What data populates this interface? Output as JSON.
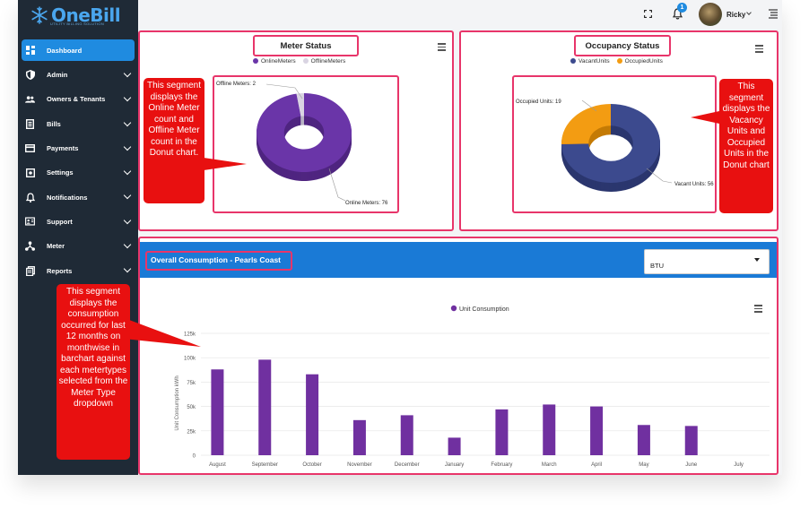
{
  "app": {
    "logo_text": "OneBill",
    "logo_tagline": "UTILITY BILLING SOLUTION"
  },
  "sidebar": {
    "items": [
      {
        "label": "Dashboard",
        "icon": "dashboard-icon",
        "active": true
      },
      {
        "label": "Admin",
        "icon": "shield-icon"
      },
      {
        "label": "Owners & Tenants",
        "icon": "users-icon"
      },
      {
        "label": "Bills",
        "icon": "bill-icon"
      },
      {
        "label": "Payments",
        "icon": "card-icon"
      },
      {
        "label": "Settings",
        "icon": "settings-icon"
      },
      {
        "label": "Notifications",
        "icon": "bell-icon"
      },
      {
        "label": "Support",
        "icon": "support-icon"
      },
      {
        "label": "Meter",
        "icon": "meter-icon"
      },
      {
        "label": "Reports",
        "icon": "reports-icon"
      }
    ]
  },
  "topbar": {
    "notification_count": "1",
    "user_name": "Ricky"
  },
  "meter_status": {
    "title": "Meter Status",
    "legend": [
      "OnlineMeters",
      "OfflineMeters"
    ],
    "offline_label": "Offline Meters: 2",
    "online_label": "Online Meters: 76",
    "colors": {
      "online": "#6a35a8",
      "offline": "#d9d4e2"
    }
  },
  "occupancy_status": {
    "title": "Occupancy Status",
    "legend": [
      "VacantUnits",
      "OccupiedUnits"
    ],
    "occupied_label": "Occupied Units: 19",
    "vacant_label": "Vacant Units: 56",
    "colors": {
      "vacant": "#3c4a8e",
      "occupied": "#f39c12"
    }
  },
  "consumption": {
    "title": "Overall Consumption - Pearls Coast",
    "meter_type": "BTU"
  },
  "callouts": {
    "meter": "This segment displays the Online Meter count and Offline Meter count in the Donut chart.",
    "occupancy": "This segment displays the Vacancy Units and Occupied Units in the Donut chart",
    "consumption": "This segment displays the consumption occurred for last 12 months on monthwise in barchart against each metertypes selected from the Meter Type dropdown"
  },
  "chart_data": [
    {
      "type": "pie",
      "title": "Meter Status",
      "labels": [
        "OnlineMeters",
        "OfflineMeters"
      ],
      "values": [
        76,
        2
      ]
    },
    {
      "type": "pie",
      "title": "Occupancy Status",
      "labels": [
        "VacantUnits",
        "OccupiedUnits"
      ],
      "values": [
        56,
        19
      ]
    },
    {
      "type": "bar",
      "title": "",
      "categories": [
        "August",
        "September",
        "October",
        "November",
        "December",
        "January",
        "February",
        "March",
        "April",
        "May",
        "June",
        "July"
      ],
      "series": [
        {
          "name": "Unit Consumption",
          "values": [
            88000,
            98000,
            83000,
            36000,
            41000,
            18000,
            47000,
            52000,
            50000,
            31000,
            30000,
            0
          ]
        }
      ],
      "ylabel": "Unit Consumption kWh",
      "ylim": [
        0,
        125000
      ],
      "yticks": [
        "0",
        "25k",
        "50k",
        "75k",
        "100k",
        "125k"
      ],
      "grid": true,
      "legend": "top-center",
      "color": "#7030a0"
    }
  ]
}
